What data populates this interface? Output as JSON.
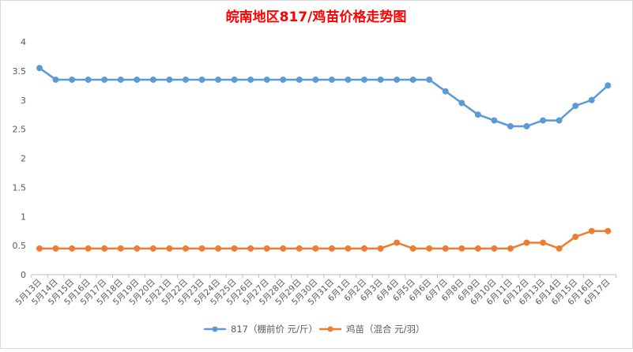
{
  "chart_data": {
    "type": "line",
    "title": "皖南地区817/鸡苗价格走势图",
    "title_color": "#ff0000",
    "categories": [
      "5月13日",
      "5月14日",
      "5月15日",
      "5月16日",
      "5月17日",
      "5月18日",
      "5月19日",
      "5月20日",
      "5月21日",
      "5月22日",
      "5月23日",
      "5月24日",
      "5月25日",
      "5月26日",
      "5月27日",
      "5月28日",
      "5月29日",
      "5月30日",
      "5月31日",
      "6月1日",
      "6月2日",
      "6月3日",
      "6月4日",
      "6月5日",
      "6月6日",
      "6月7日",
      "6月8日",
      "6月9日",
      "6月10日",
      "6月11日",
      "6月12日",
      "6月13日",
      "6月14日",
      "6月15日",
      "6月16日",
      "6月17日"
    ],
    "series": [
      {
        "name": "817（棚前价 元/斤）",
        "color": "#5b9bd5",
        "values": [
          3.55,
          3.35,
          3.35,
          3.35,
          3.35,
          3.35,
          3.35,
          3.35,
          3.35,
          3.35,
          3.35,
          3.35,
          3.35,
          3.35,
          3.35,
          3.35,
          3.35,
          3.35,
          3.35,
          3.35,
          3.35,
          3.35,
          3.35,
          3.35,
          3.35,
          3.15,
          2.95,
          2.75,
          2.65,
          2.55,
          2.55,
          2.65,
          2.65,
          2.9,
          3.0,
          3.25
        ]
      },
      {
        "name": "鸡苗（混合 元/羽）",
        "color": "#ed7d31",
        "values": [
          0.45,
          0.45,
          0.45,
          0.45,
          0.45,
          0.45,
          0.45,
          0.45,
          0.45,
          0.45,
          0.45,
          0.45,
          0.45,
          0.45,
          0.45,
          0.45,
          0.45,
          0.45,
          0.45,
          0.45,
          0.45,
          0.45,
          0.55,
          0.45,
          0.45,
          0.45,
          0.45,
          0.45,
          0.45,
          0.45,
          0.55,
          0.55,
          0.45,
          0.65,
          0.75,
          0.75
        ]
      }
    ],
    "ylim": [
      0,
      4
    ],
    "yticks": [
      "0",
      "0.5",
      "1",
      "1.5",
      "2",
      "2.5",
      "3",
      "3.5",
      "4"
    ],
    "grid": false,
    "legend_position": "bottom"
  }
}
